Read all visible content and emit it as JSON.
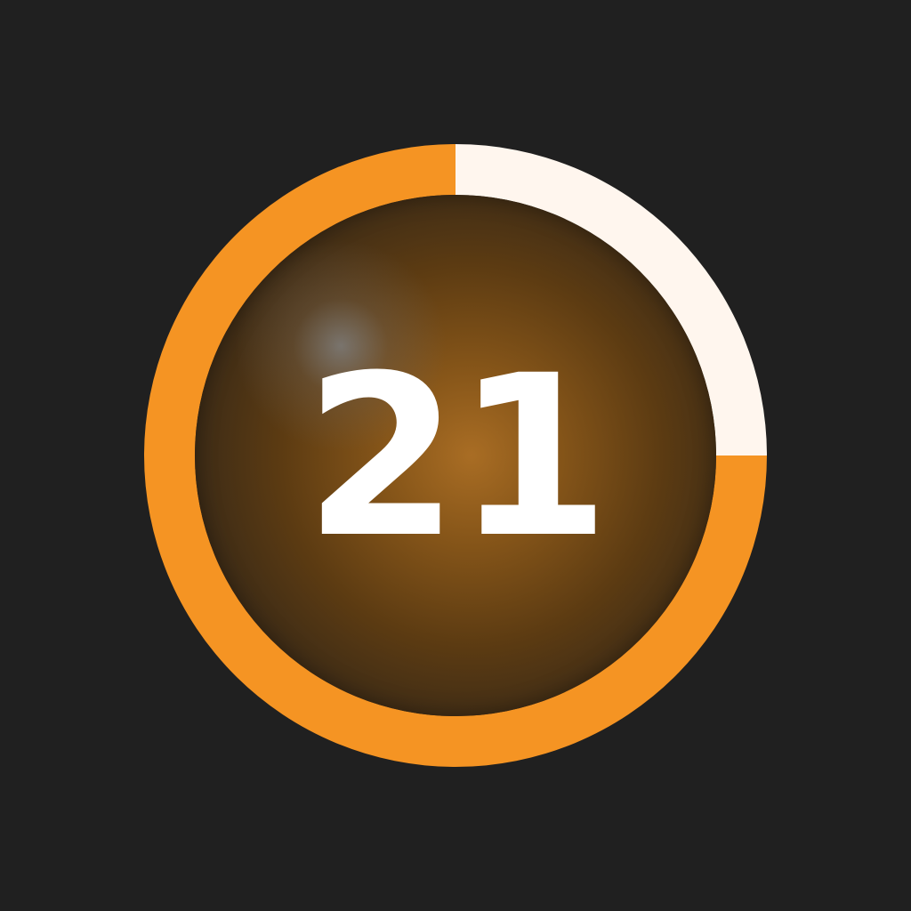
{
  "timer": {
    "value": "21",
    "progress_fraction": 0.75,
    "colors": {
      "background": "#202020",
      "progress": "#f59423",
      "track": "#fff6ee",
      "text": "#ffffff"
    }
  }
}
